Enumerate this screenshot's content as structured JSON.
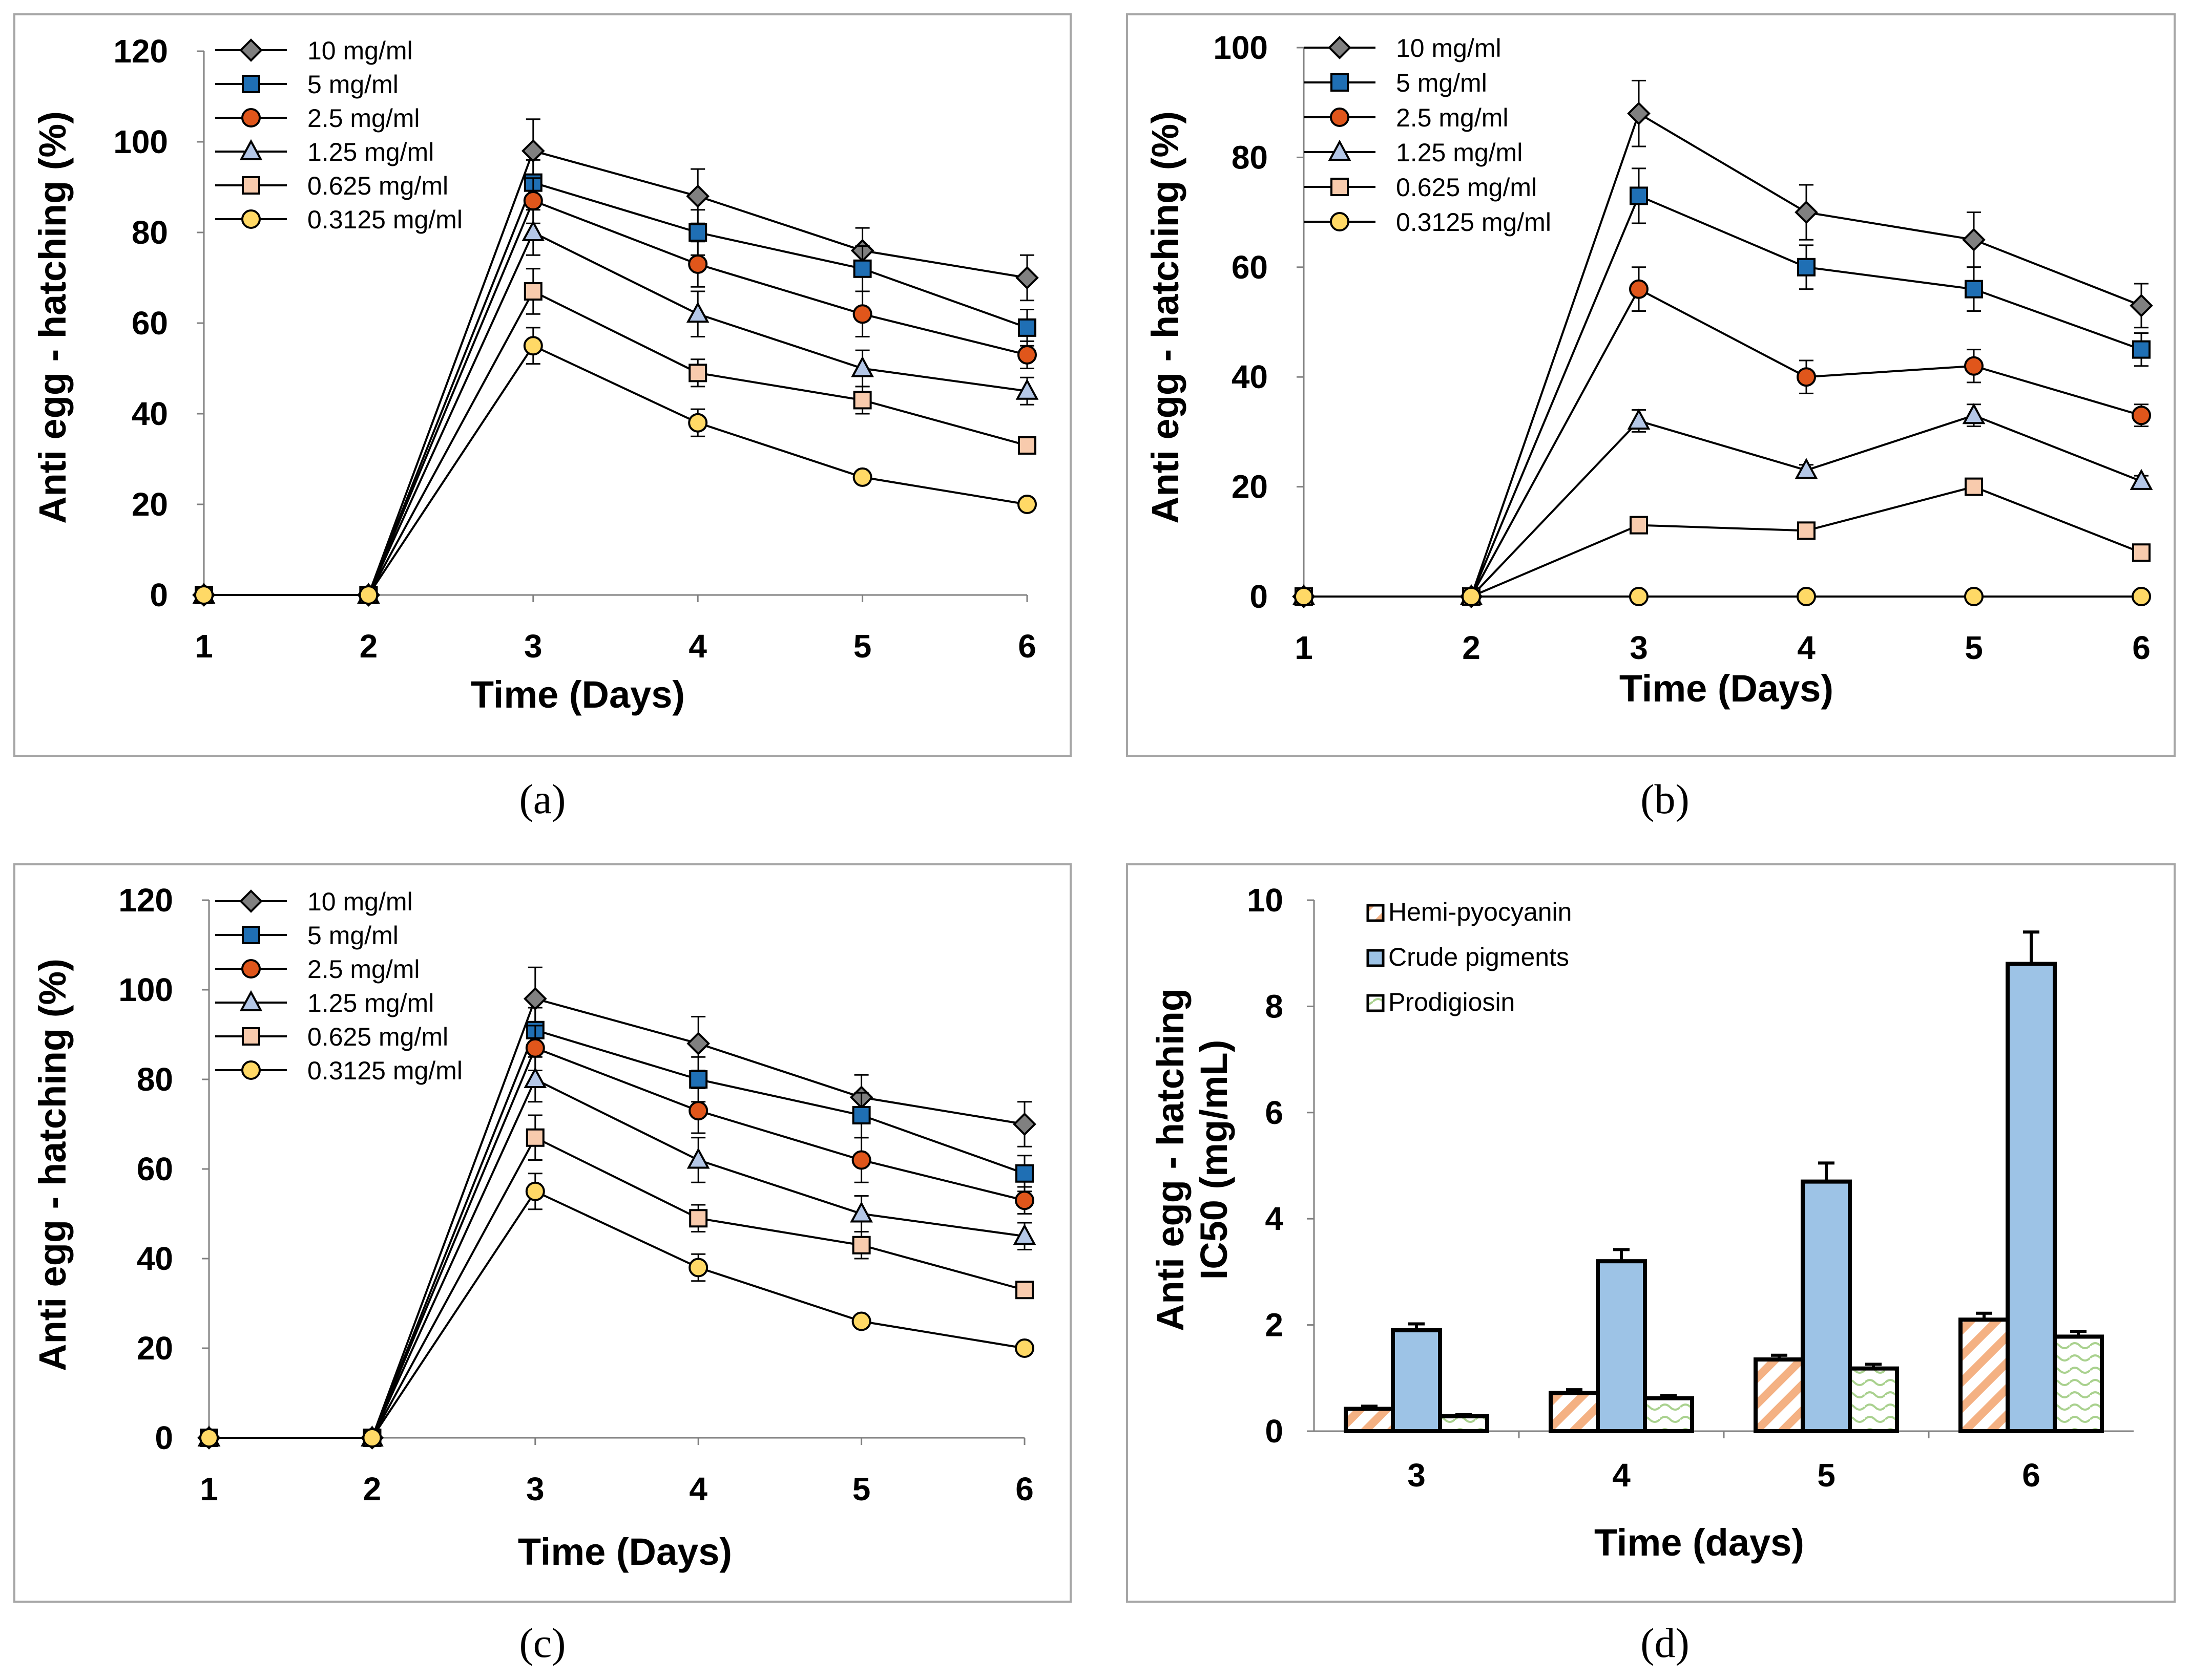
{
  "colors": {
    "panel_border": "#a6a6a6",
    "line": "#000000",
    "c10": "#808080",
    "c5": "#1f6fb4",
    "c25": "#e0561b",
    "c125": "#b4c7e7",
    "c0625": "#f8cbad",
    "c03125": "#ffd966",
    "hemi": "#f4b183",
    "crude": "#9dc3e6",
    "prodig": "#a9d18e"
  },
  "panels": [
    {
      "caption": "(a)",
      "chart_data": {
        "type": "line",
        "xlabel": "Time (Days)",
        "ylabel": "Anti egg - hatching (%)",
        "x": [
          1,
          2,
          3,
          4,
          5,
          6
        ],
        "xlim": [
          1,
          6
        ],
        "ylim": [
          0,
          120
        ],
        "yticks": [
          0,
          20,
          40,
          60,
          80,
          100,
          120
        ],
        "legend_position": "top-left",
        "series": [
          {
            "name": "10 mg/ml",
            "marker": "diamond",
            "color": "#808080",
            "values": [
              0,
              0,
              98,
              88,
              76,
              70
            ],
            "err": [
              0,
              0,
              7,
              6,
              5,
              5
            ]
          },
          {
            "name": "5 mg/ml",
            "marker": "square",
            "color": "#1f6fb4",
            "values": [
              0,
              0,
              91,
              80,
              72,
              59
            ],
            "err": [
              0,
              0,
              5,
              5,
              5,
              4
            ]
          },
          {
            "name": "2.5 mg/ml",
            "marker": "circle",
            "color": "#e0561b",
            "values": [
              0,
              0,
              87,
              73,
              62,
              53
            ],
            "err": [
              0,
              0,
              5,
              5,
              5,
              3
            ]
          },
          {
            "name": "1.25 mg/ml",
            "marker": "triangle",
            "color": "#b4c7e7",
            "values": [
              0,
              0,
              80,
              62,
              50,
              45
            ],
            "err": [
              0,
              0,
              5,
              5,
              4,
              3
            ]
          },
          {
            "name": "0.625 mg/ml",
            "marker": "square",
            "color": "#f8cbad",
            "values": [
              0,
              0,
              67,
              49,
              43,
              33
            ],
            "err": [
              0,
              0,
              5,
              3,
              3,
              1
            ]
          },
          {
            "name": "0.3125 mg/ml",
            "marker": "circle",
            "color": "#ffd966",
            "values": [
              0,
              0,
              55,
              38,
              26,
              20
            ],
            "err": [
              0,
              0,
              4,
              3,
              1,
              1
            ]
          }
        ]
      }
    },
    {
      "caption": "(b)",
      "chart_data": {
        "type": "line",
        "xlabel": "Time (Days)",
        "ylabel": "Anti egg - hatching (%)",
        "x": [
          1,
          2,
          3,
          4,
          5,
          6
        ],
        "xlim": [
          1,
          6
        ],
        "ylim": [
          0,
          100
        ],
        "yticks": [
          0,
          20,
          40,
          60,
          80,
          100
        ],
        "legend_position": "top-left",
        "series": [
          {
            "name": "10 mg/ml",
            "marker": "diamond",
            "color": "#808080",
            "values": [
              0,
              0,
              88,
              70,
              65,
              53
            ],
            "err": [
              0,
              0,
              6,
              5,
              5,
              4
            ]
          },
          {
            "name": "5 mg/ml",
            "marker": "square",
            "color": "#1f6fb4",
            "values": [
              0,
              0,
              73,
              60,
              56,
              45
            ],
            "err": [
              0,
              0,
              5,
              4,
              4,
              3
            ]
          },
          {
            "name": "2.5 mg/ml",
            "marker": "circle",
            "color": "#e0561b",
            "values": [
              0,
              0,
              56,
              40,
              42,
              33
            ],
            "err": [
              0,
              0,
              4,
              3,
              3,
              2
            ]
          },
          {
            "name": "1.25 mg/ml",
            "marker": "triangle",
            "color": "#b4c7e7",
            "values": [
              0,
              0,
              32,
              23,
              33,
              21
            ],
            "err": [
              0,
              0,
              2,
              1,
              2,
              1
            ]
          },
          {
            "name": "0.625 mg/ml",
            "marker": "square",
            "color": "#f8cbad",
            "values": [
              0,
              0,
              13,
              12,
              20,
              8
            ],
            "err": [
              0,
              0,
              1,
              1,
              1,
              1
            ]
          },
          {
            "name": "0.3125 mg/ml",
            "marker": "circle",
            "color": "#ffd966",
            "values": [
              0,
              0,
              0,
              0,
              0,
              0
            ],
            "err": [
              0,
              0,
              0,
              0,
              0,
              0
            ]
          }
        ]
      }
    },
    {
      "caption": "(c)",
      "chart_data": {
        "type": "line",
        "xlabel": "Time (Days)",
        "ylabel": "Anti egg - hatching (%)",
        "x": [
          1,
          2,
          3,
          4,
          5,
          6
        ],
        "xlim": [
          1,
          6
        ],
        "ylim": [
          0,
          120
        ],
        "yticks": [
          0,
          20,
          40,
          60,
          80,
          100,
          120
        ],
        "legend_position": "top-left",
        "series": [
          {
            "name": "10 mg/ml",
            "marker": "diamond",
            "color": "#808080",
            "values": [
              0,
              0,
              98,
              88,
              76,
              70
            ],
            "err": [
              0,
              0,
              7,
              6,
              5,
              5
            ]
          },
          {
            "name": "5 mg/ml",
            "marker": "square",
            "color": "#1f6fb4",
            "values": [
              0,
              0,
              91,
              80,
              72,
              59
            ],
            "err": [
              0,
              0,
              5,
              5,
              5,
              4
            ]
          },
          {
            "name": "2.5 mg/ml",
            "marker": "circle",
            "color": "#e0561b",
            "values": [
              0,
              0,
              87,
              73,
              62,
              53
            ],
            "err": [
              0,
              0,
              5,
              5,
              5,
              3
            ]
          },
          {
            "name": "1.25 mg/ml",
            "marker": "triangle",
            "color": "#b4c7e7",
            "values": [
              0,
              0,
              80,
              62,
              50,
              45
            ],
            "err": [
              0,
              0,
              5,
              5,
              4,
              3
            ]
          },
          {
            "name": "0.625 mg/ml",
            "marker": "square",
            "color": "#f8cbad",
            "values": [
              0,
              0,
              67,
              49,
              43,
              33
            ],
            "err": [
              0,
              0,
              5,
              3,
              3,
              1
            ]
          },
          {
            "name": "0.3125 mg/ml",
            "marker": "circle",
            "color": "#ffd966",
            "values": [
              0,
              0,
              55,
              38,
              26,
              20
            ],
            "err": [
              0,
              0,
              4,
              3,
              1,
              1
            ]
          }
        ]
      }
    },
    {
      "caption": "(d)",
      "chart_data": {
        "type": "bar",
        "xlabel": "Time (days)",
        "ylabel_lines": [
          "Anti egg - hatching",
          "IC50  (mg/mL)"
        ],
        "categories": [
          "3",
          "4",
          "5",
          "6"
        ],
        "ylim": [
          0,
          10
        ],
        "yticks": [
          0,
          2,
          4,
          6,
          8,
          10
        ],
        "legend_position": "top-left",
        "series": [
          {
            "name": "Hemi-pyocyanin",
            "color": "#f4b183",
            "pattern": "diagonal",
            "values": [
              0.42,
              0.72,
              1.35,
              2.1
            ],
            "err": [
              0.05,
              0.06,
              0.08,
              0.12
            ]
          },
          {
            "name": "Crude pigments",
            "color": "#9dc3e6",
            "pattern": "solid",
            "values": [
              1.9,
              3.2,
              4.7,
              8.8
            ],
            "err": [
              0.12,
              0.22,
              0.35,
              0.6
            ]
          },
          {
            "name": "Prodigiosin",
            "color": "#a9d18e",
            "pattern": "wave",
            "values": [
              0.28,
              0.62,
              1.18,
              1.78
            ],
            "err": [
              0.03,
              0.05,
              0.08,
              0.1
            ]
          }
        ]
      }
    }
  ]
}
